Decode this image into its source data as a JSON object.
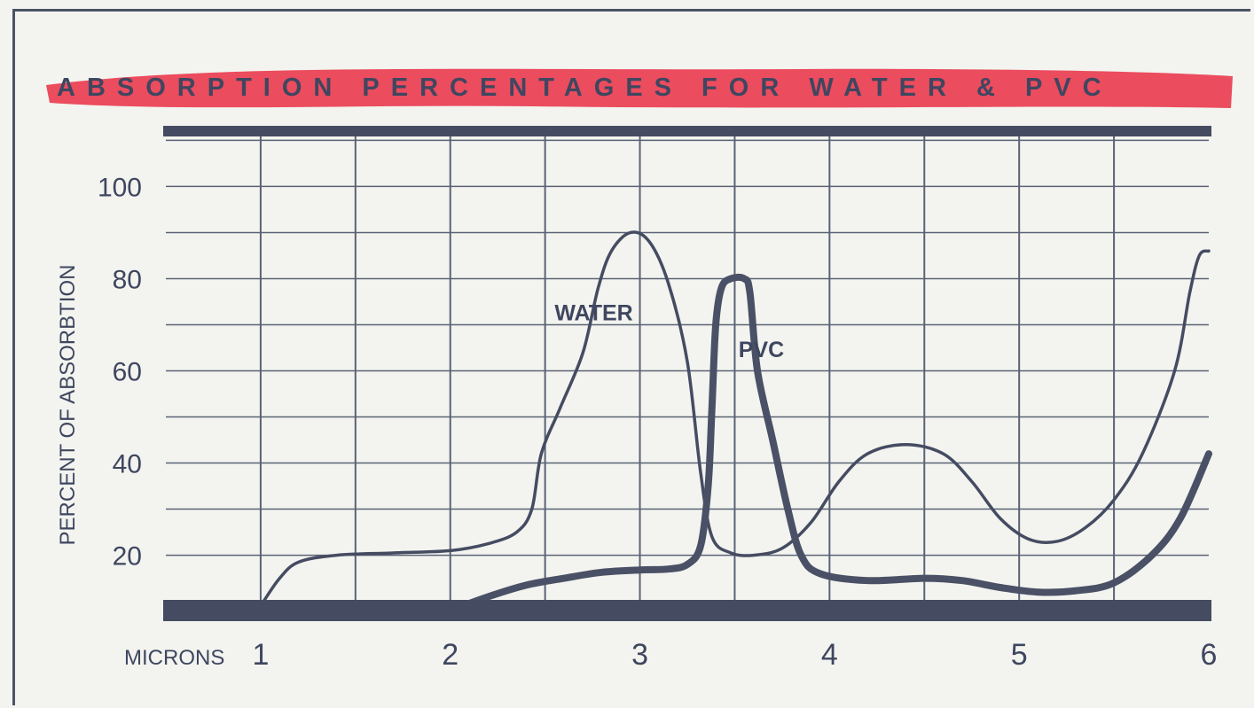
{
  "chart_data": {
    "type": "line",
    "title": "ABSORPTION PERCENTAGES FOR WATER & PVC",
    "xlabel": "MICRONS",
    "ylabel": "PERCENT OF ABSORBTION",
    "x_ticks": [
      1,
      2,
      3,
      4,
      5,
      6
    ],
    "y_ticks": [
      20,
      40,
      60,
      80,
      100
    ],
    "xlim": [
      0.5,
      6
    ],
    "ylim": [
      8,
      112
    ],
    "grid": true,
    "series": [
      {
        "name": "WATER",
        "color": "#454c62",
        "points": [
          [
            1.0,
            9
          ],
          [
            1.1,
            15
          ],
          [
            1.2,
            18.5
          ],
          [
            1.4,
            20
          ],
          [
            1.7,
            20.5
          ],
          [
            2.0,
            21
          ],
          [
            2.2,
            22.5
          ],
          [
            2.35,
            25
          ],
          [
            2.43,
            30
          ],
          [
            2.48,
            42
          ],
          [
            2.58,
            52
          ],
          [
            2.7,
            64
          ],
          [
            2.78,
            78
          ],
          [
            2.85,
            86
          ],
          [
            2.95,
            90
          ],
          [
            3.05,
            88
          ],
          [
            3.15,
            79
          ],
          [
            3.25,
            62
          ],
          [
            3.32,
            38
          ],
          [
            3.38,
            24
          ],
          [
            3.48,
            20.5
          ],
          [
            3.6,
            20
          ],
          [
            3.75,
            21.5
          ],
          [
            3.9,
            27
          ],
          [
            4.05,
            36
          ],
          [
            4.2,
            42
          ],
          [
            4.4,
            44
          ],
          [
            4.6,
            42
          ],
          [
            4.75,
            36
          ],
          [
            4.9,
            28
          ],
          [
            5.05,
            23.5
          ],
          [
            5.2,
            23
          ],
          [
            5.35,
            26
          ],
          [
            5.5,
            32
          ],
          [
            5.65,
            42
          ],
          [
            5.82,
            60
          ],
          [
            5.9,
            77
          ],
          [
            5.95,
            85
          ],
          [
            6.0,
            86
          ]
        ]
      },
      {
        "name": "PVC",
        "color": "#4a5166",
        "points": [
          [
            2.0,
            8
          ],
          [
            2.2,
            11
          ],
          [
            2.4,
            13.5
          ],
          [
            2.6,
            15
          ],
          [
            2.8,
            16.3
          ],
          [
            3.0,
            16.8
          ],
          [
            3.15,
            17
          ],
          [
            3.25,
            18
          ],
          [
            3.32,
            22
          ],
          [
            3.36,
            35
          ],
          [
            3.38,
            52
          ],
          [
            3.4,
            70
          ],
          [
            3.43,
            78
          ],
          [
            3.48,
            80
          ],
          [
            3.55,
            80
          ],
          [
            3.58,
            77
          ],
          [
            3.62,
            60
          ],
          [
            3.7,
            45
          ],
          [
            3.78,
            30
          ],
          [
            3.85,
            20
          ],
          [
            3.95,
            16
          ],
          [
            4.2,
            14.5
          ],
          [
            4.5,
            15
          ],
          [
            4.7,
            14.5
          ],
          [
            4.9,
            13
          ],
          [
            5.1,
            12
          ],
          [
            5.3,
            12.3
          ],
          [
            5.5,
            14
          ],
          [
            5.7,
            20
          ],
          [
            5.85,
            28
          ],
          [
            6.0,
            42
          ]
        ]
      }
    ]
  }
}
